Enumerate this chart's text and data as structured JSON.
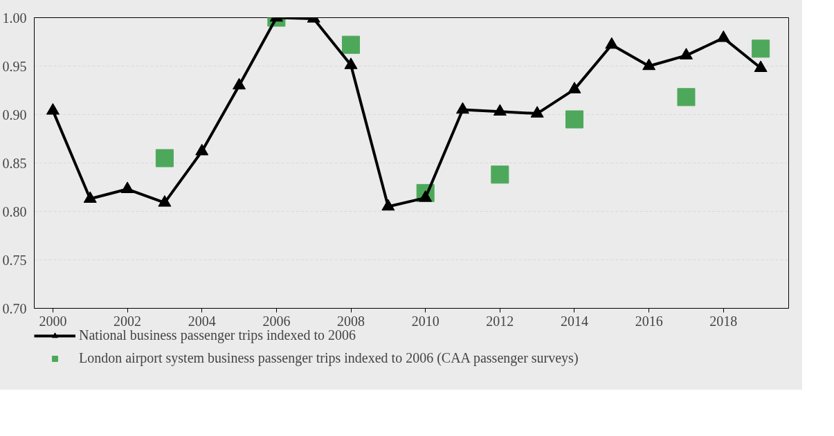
{
  "chart_data": {
    "type": "line",
    "xlim": [
      1999.5,
      2019.75
    ],
    "ylim": [
      0.7,
      1.0
    ],
    "xticks": [
      2000,
      2002,
      2004,
      2006,
      2008,
      2010,
      2012,
      2014,
      2016,
      2018
    ],
    "yticks": [
      {
        "value": 0.7,
        "label": "0.70"
      },
      {
        "value": 0.75,
        "label": "0.75"
      },
      {
        "value": 0.8,
        "label": "0.80"
      },
      {
        "value": 0.85,
        "label": "0.85"
      },
      {
        "value": 0.9,
        "label": "0.90"
      },
      {
        "value": 0.95,
        "label": "0.95"
      },
      {
        "value": 1.0,
        "label": "1.00"
      }
    ],
    "grid": "y",
    "legend": "bottom",
    "series": [
      {
        "name": "National business passenger trips indexed to 2006",
        "type": "line",
        "color": "#000000",
        "marker": "triangle",
        "x": [
          2000,
          2001,
          2002,
          2003,
          2004,
          2005,
          2006,
          2007,
          2008,
          2009,
          2010,
          2011,
          2012,
          2013,
          2014,
          2015,
          2016,
          2017,
          2018,
          2019
        ],
        "values": [
          0.904,
          0.813,
          0.823,
          0.809,
          0.862,
          0.93,
          1.0,
          0.999,
          0.951,
          0.805,
          0.814,
          0.905,
          0.903,
          0.901,
          0.926,
          0.972,
          0.95,
          0.961,
          0.979,
          0.948
        ]
      },
      {
        "name": "London airport system business passenger trips indexed to 2006 (CAA passenger surveys)",
        "type": "scatter",
        "color": "#4ea85b",
        "marker": "square",
        "x": [
          2003,
          2006,
          2008,
          2010,
          2012,
          2014,
          2017,
          2019
        ],
        "values": [
          0.855,
          1.0,
          0.972,
          0.819,
          0.838,
          0.895,
          0.918,
          0.968
        ]
      }
    ]
  }
}
